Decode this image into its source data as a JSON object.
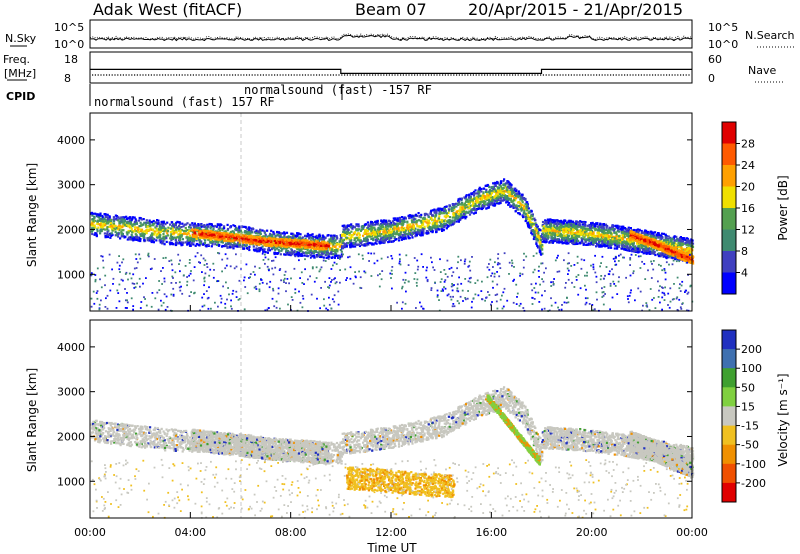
{
  "header": {
    "station": "Adak West (fitACF)",
    "beam": "Beam 07",
    "date_range": "20/Apr/2015 - 21/Apr/2015"
  },
  "noise_panel": {
    "left_label": "N.Sky",
    "right_label": "N.Search",
    "ticks_left": [
      "10^5",
      "10^0"
    ],
    "ticks_right": [
      "10^5",
      "10^0"
    ]
  },
  "freq_panel": {
    "left_label_top": "Freq.",
    "left_label_unit": "[MHz]",
    "right_label": "Nave",
    "ticks_left": [
      "18",
      "8"
    ],
    "ticks_right": [
      "60",
      "0"
    ],
    "freq_series": [
      {
        "x": [
          0,
          10
        ],
        "y": [
          12.3,
          12.3
        ]
      },
      {
        "x": [
          10,
          18
        ],
        "y": [
          10.3,
          10.3
        ]
      },
      {
        "x": [
          18,
          24
        ],
        "y": [
          12.3,
          12.3
        ]
      }
    ]
  },
  "cpid": {
    "label": "CPID",
    "mode1": "normalsound (fast) 157 RF",
    "mode2": "normalsound (fast) -157 RF"
  },
  "chart_data": [
    {
      "type": "heatmap",
      "name": "Power",
      "ylabel": "Slant Range [km]",
      "xlim": [
        0,
        24
      ],
      "ylim": [
        180,
        4600
      ],
      "yticks": [
        1000,
        2000,
        3000,
        4000
      ],
      "colorbar": {
        "label": "Power [dB]",
        "ticks": [
          "28",
          "24",
          "20",
          "16",
          "12",
          "8",
          "4"
        ],
        "colors": [
          "#e00000",
          "#ff5a00",
          "#ffa000",
          "#f0e000",
          "#54a050",
          "#3f8a70",
          "#4040c0",
          "#0000ff"
        ]
      },
      "scatter_bands": [
        {
          "x": [
            0.0,
            1.5,
            3.0,
            4.5,
            6.0,
            7.5,
            9.0,
            10.0
          ],
          "y": [
            2150,
            2050,
            1950,
            1900,
            1850,
            1720,
            1650,
            1650
          ],
          "level": "low"
        },
        {
          "x": [
            10.0,
            12.0,
            14.0,
            15.5,
            16.5,
            17.3,
            18.0
          ],
          "y": [
            1850,
            2000,
            2250,
            2700,
            2900,
            2500,
            1650
          ],
          "level": "low"
        },
        {
          "x": [
            18.0,
            19.5,
            21.0,
            22.5,
            24.0
          ],
          "y": [
            2000,
            1950,
            1850,
            1700,
            1550
          ],
          "level": "low"
        },
        {
          "x": [
            4.0,
            5.5,
            7.0,
            8.5,
            9.5
          ],
          "y": [
            1950,
            1850,
            1750,
            1700,
            1650
          ],
          "level": "high"
        },
        {
          "x": [
            21.5,
            22.5,
            23.5,
            24.0
          ],
          "y": [
            1900,
            1700,
            1450,
            1350
          ],
          "level": "high"
        }
      ]
    },
    {
      "type": "heatmap",
      "name": "Velocity",
      "xlabel": "Time UT",
      "ylabel": "Slant Range [km]",
      "xlim": [
        0,
        24
      ],
      "ylim": [
        180,
        4600
      ],
      "xticks": [
        "00:00",
        "04:00",
        "08:00",
        "12:00",
        "16:00",
        "20:00",
        "00:00"
      ],
      "yticks": [
        1000,
        2000,
        3000,
        4000
      ],
      "colorbar": {
        "label": "Velocity [m s⁻¹]",
        "ticks": [
          "200",
          "100",
          "50",
          "15",
          "-15",
          "-50",
          "-100",
          "-200"
        ],
        "colors": [
          "#2030c0",
          "#3f70b0",
          "#3fa030",
          "#80d040",
          "#c8c8c0",
          "#f0c020",
          "#f09000",
          "#f05000",
          "#e00000"
        ]
      },
      "notable_features": [
        {
          "x": [
            15.8,
            17.9
          ],
          "y": [
            2900,
            1450
          ],
          "velocity_class": "50"
        },
        {
          "x": [
            10.2,
            14.5
          ],
          "y": [
            1100,
            900
          ],
          "velocity_class": "-50"
        }
      ]
    }
  ]
}
